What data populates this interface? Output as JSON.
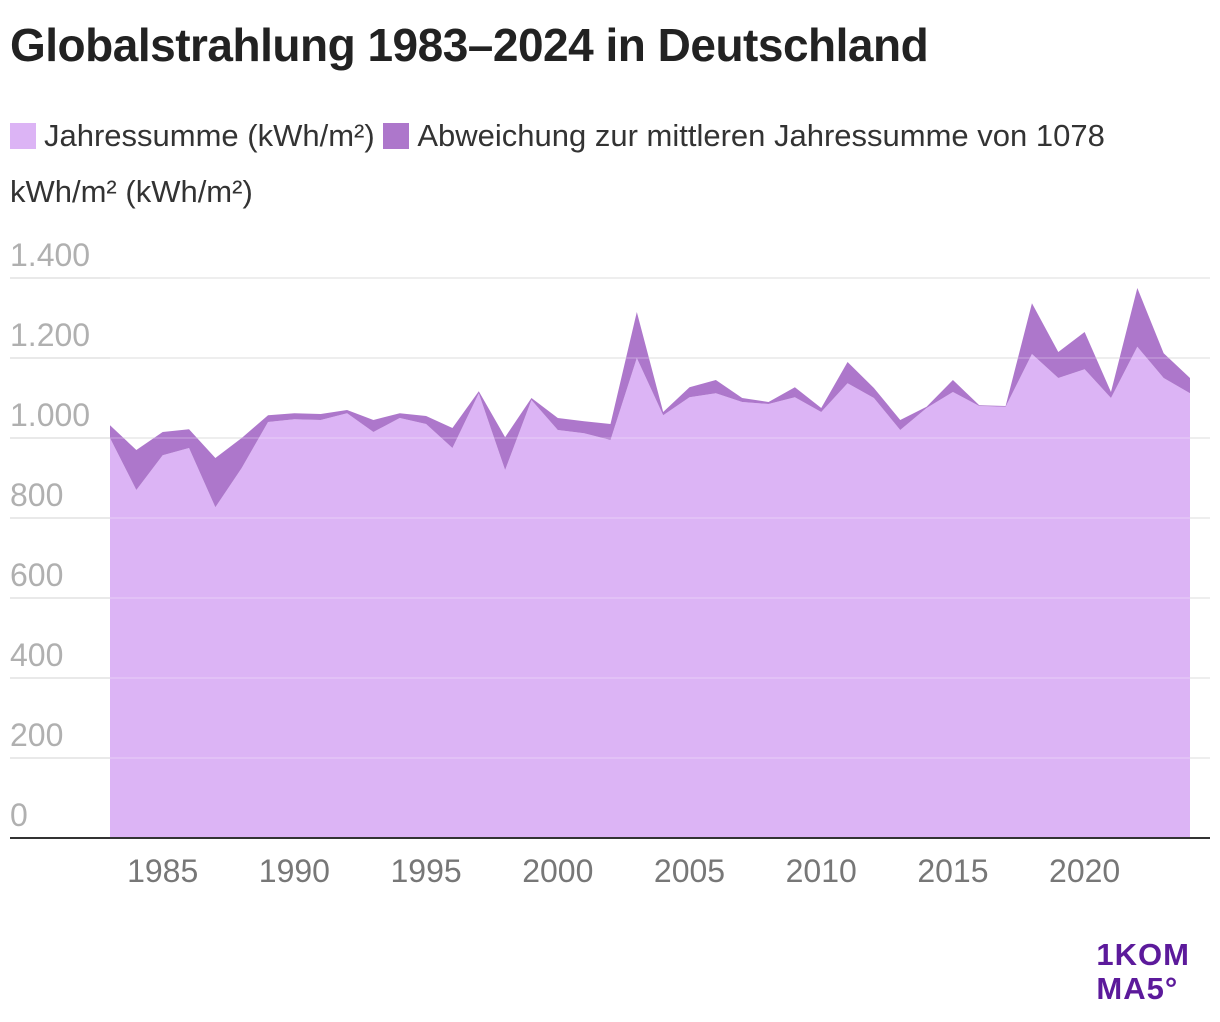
{
  "chart_data": {
    "type": "area",
    "title": "Globalstrahlung 1983–2024 in Deutschland",
    "x": [
      1983,
      1984,
      1985,
      1986,
      1987,
      1988,
      1989,
      1990,
      1991,
      1992,
      1993,
      1994,
      1995,
      1996,
      1997,
      1998,
      1999,
      2000,
      2001,
      2002,
      2003,
      2004,
      2005,
      2006,
      2007,
      2008,
      2009,
      2010,
      2011,
      2012,
      2013,
      2014,
      2015,
      2016,
      2017,
      2018,
      2019,
      2020,
      2021,
      2022,
      2023,
      2024
    ],
    "series": [
      {
        "name": "Jahressumme (kWh/m²)",
        "color": "#dcb4f5",
        "values": [
          1000,
          870,
          957,
          975,
          827,
          925,
          1040,
          1047,
          1045,
          1062,
          1015,
          1050,
          1035,
          975,
          1112,
          920,
          1095,
          1020,
          1012,
          995,
          1200,
          1057,
          1102,
          1112,
          1090,
          1085,
          1102,
          1065,
          1137,
          1100,
          1020,
          1075,
          1115,
          1080,
          1078,
          1210,
          1150,
          1172,
          1100,
          1228,
          1150,
          1112
        ]
      },
      {
        "name": "Abweichung zur mittleren Jahressumme von 1078 kWh/m² (kWh/m²)",
        "color": "#ad77cb",
        "values": [
          32,
          100,
          58,
          47,
          123,
          75,
          17,
          15,
          15,
          8,
          30,
          12,
          20,
          50,
          5,
          82,
          5,
          30,
          30,
          40,
          115,
          8,
          25,
          33,
          10,
          5,
          25,
          10,
          53,
          25,
          25,
          3,
          30,
          2,
          2,
          127,
          65,
          93,
          15,
          147,
          62,
          38
        ]
      }
    ],
    "stacked": true,
    "xlim": [
      1983,
      2024
    ],
    "xticks": [
      1985,
      1990,
      1995,
      2000,
      2005,
      2010,
      2015,
      2020
    ],
    "ylim": [
      0,
      1400
    ],
    "yticks": [
      0,
      200,
      400,
      600,
      800,
      {
        "value": 1000,
        "label": "1.000"
      },
      {
        "value": 1200,
        "label": "1.200"
      },
      {
        "value": 1400,
        "label": "1.400"
      }
    ],
    "grid": true
  },
  "logo": [
    "1KOM",
    "MA5°"
  ]
}
